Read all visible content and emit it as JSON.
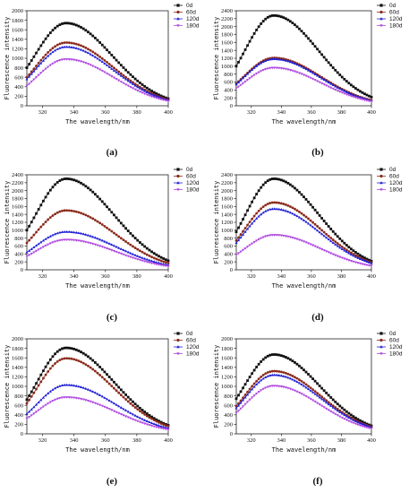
{
  "colors": {
    "0d": "#111111",
    "60d": "#8b2a1a",
    "120d": "#1f1fd6",
    "180d": "#b04be0"
  },
  "marker_icons": [
    "square-marker-icon",
    "circle-marker-icon",
    "triangle-up-marker-icon",
    "triangle-down-marker-icon"
  ],
  "chart_data": [
    {
      "type": "line",
      "panel_label": "(a)",
      "xlabel": "The wavelength/nm",
      "ylabel": "Fluorescence intensity",
      "xlim": [
        310,
        400
      ],
      "ylim": [
        0,
        2000
      ],
      "xticks": [
        320,
        340,
        360,
        380,
        400
      ],
      "yticks": [
        0,
        200,
        400,
        600,
        800,
        1000,
        1200,
        1400,
        1600,
        1800,
        2000
      ],
      "legend_position": "top-right",
      "grid": false,
      "series": [
        {
          "name": "0d",
          "peak_x": 335,
          "peak_y": 1740,
          "start_y": 800,
          "end_y": 150
        },
        {
          "name": "60d",
          "peak_x": 335,
          "peak_y": 1330,
          "start_y": 600,
          "end_y": 130
        },
        {
          "name": "120d",
          "peak_x": 335,
          "peak_y": 1240,
          "start_y": 560,
          "end_y": 120
        },
        {
          "name": "180d",
          "peak_x": 335,
          "peak_y": 980,
          "start_y": 420,
          "end_y": 100
        }
      ]
    },
    {
      "type": "line",
      "panel_label": "(b)",
      "xlabel": "The wavelength/nm",
      "ylabel": "Fluorescence intensity",
      "xlim": [
        310,
        400
      ],
      "ylim": [
        0,
        2400
      ],
      "xticks": [
        320,
        340,
        360,
        380,
        400
      ],
      "yticks": [
        0,
        200,
        400,
        600,
        800,
        1000,
        1200,
        1400,
        1600,
        1800,
        2000,
        2200,
        2400
      ],
      "legend_position": "top-right",
      "grid": false,
      "series": [
        {
          "name": "0d",
          "peak_x": 335,
          "peak_y": 2280,
          "start_y": 1000,
          "end_y": 220
        },
        {
          "name": "60d",
          "peak_x": 335,
          "peak_y": 1210,
          "start_y": 560,
          "end_y": 140
        },
        {
          "name": "120d",
          "peak_x": 335,
          "peak_y": 1180,
          "start_y": 540,
          "end_y": 130
        },
        {
          "name": "180d",
          "peak_x": 335,
          "peak_y": 960,
          "start_y": 440,
          "end_y": 110
        }
      ]
    },
    {
      "type": "line",
      "panel_label": "(c)",
      "xlabel": "The wavelength/nm",
      "ylabel": "Fluorescence intensity",
      "xlim": [
        310,
        400
      ],
      "ylim": [
        0,
        2400
      ],
      "xticks": [
        320,
        340,
        360,
        380,
        400
      ],
      "yticks": [
        0,
        200,
        400,
        600,
        800,
        1000,
        1200,
        1400,
        1600,
        1800,
        2000,
        2200,
        2400
      ],
      "legend_position": "top-right",
      "grid": false,
      "series": [
        {
          "name": "0d",
          "peak_x": 335,
          "peak_y": 2300,
          "start_y": 1000,
          "end_y": 230
        },
        {
          "name": "60d",
          "peak_x": 335,
          "peak_y": 1500,
          "start_y": 680,
          "end_y": 170
        },
        {
          "name": "120d",
          "peak_x": 335,
          "peak_y": 960,
          "start_y": 440,
          "end_y": 120
        },
        {
          "name": "180d",
          "peak_x": 335,
          "peak_y": 760,
          "start_y": 340,
          "end_y": 90
        }
      ]
    },
    {
      "type": "line",
      "panel_label": "(d)",
      "xlabel": "The wavelength/nm",
      "ylabel": "Fluorescence intensity",
      "xlim": [
        310,
        400
      ],
      "ylim": [
        0,
        2400
      ],
      "xticks": [
        320,
        340,
        360,
        380,
        400
      ],
      "yticks": [
        0,
        200,
        400,
        600,
        800,
        1000,
        1200,
        1400,
        1600,
        1800,
        2000,
        2200,
        2400
      ],
      "legend_position": "top-right",
      "grid": false,
      "series": [
        {
          "name": "0d",
          "peak_x": 335,
          "peak_y": 2300,
          "start_y": 960,
          "end_y": 220
        },
        {
          "name": "60d",
          "peak_x": 335,
          "peak_y": 1700,
          "start_y": 740,
          "end_y": 190
        },
        {
          "name": "120d",
          "peak_x": 335,
          "peak_y": 1540,
          "start_y": 680,
          "end_y": 170
        },
        {
          "name": "180d",
          "peak_x": 335,
          "peak_y": 880,
          "start_y": 380,
          "end_y": 100
        }
      ]
    },
    {
      "type": "line",
      "panel_label": "(e)",
      "xlabel": "The wavelength/nm",
      "ylabel": "Fluorescence intensity",
      "xlim": [
        310,
        400
      ],
      "ylim": [
        0,
        2000
      ],
      "xticks": [
        320,
        340,
        360,
        380,
        400
      ],
      "yticks": [
        0,
        200,
        400,
        600,
        800,
        1000,
        1200,
        1400,
        1600,
        1800,
        2000
      ],
      "legend_position": "top-right",
      "grid": false,
      "series": [
        {
          "name": "0d",
          "peak_x": 335,
          "peak_y": 1810,
          "start_y": 720,
          "end_y": 180
        },
        {
          "name": "60d",
          "peak_x": 335,
          "peak_y": 1590,
          "start_y": 640,
          "end_y": 160
        },
        {
          "name": "120d",
          "peak_x": 335,
          "peak_y": 1030,
          "start_y": 420,
          "end_y": 120
        },
        {
          "name": "180d",
          "peak_x": 335,
          "peak_y": 770,
          "start_y": 320,
          "end_y": 90
        }
      ]
    },
    {
      "type": "line",
      "panel_label": "(f)",
      "xlabel": "The wavelength/nm",
      "ylabel": "Fluorescence intensity",
      "xlim": [
        310,
        400
      ],
      "ylim": [
        0,
        2000
      ],
      "xticks": [
        320,
        340,
        360,
        380,
        400
      ],
      "yticks": [
        0,
        200,
        400,
        600,
        800,
        1000,
        1200,
        1400,
        1600,
        1800,
        2000
      ],
      "legend_position": "top-right",
      "grid": false,
      "series": [
        {
          "name": "0d",
          "peak_x": 335,
          "peak_y": 1670,
          "start_y": 740,
          "end_y": 170
        },
        {
          "name": "60d",
          "peak_x": 335,
          "peak_y": 1320,
          "start_y": 580,
          "end_y": 150
        },
        {
          "name": "120d",
          "peak_x": 335,
          "peak_y": 1240,
          "start_y": 540,
          "end_y": 140
        },
        {
          "name": "180d",
          "peak_x": 335,
          "peak_y": 1010,
          "start_y": 440,
          "end_y": 110
        }
      ]
    }
  ]
}
